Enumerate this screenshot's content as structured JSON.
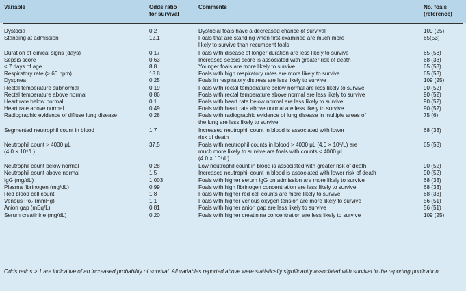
{
  "headers": {
    "variable": "Variable",
    "odds_line1": "Odds ratio",
    "odds_line2": "for survival",
    "comments": "Comments",
    "foals_line1": "No. foals",
    "foals_line2": "(reference)"
  },
  "rows": [
    {
      "variable": [
        "Dystocia"
      ],
      "odds": "0.2",
      "comments": [
        "Dystocial foals have a decreased chance of survival"
      ],
      "foals": "109 (25)"
    },
    {
      "variable": [
        "Standing at admission"
      ],
      "odds": "12.1",
      "comments": [
        "Foals that are standing when first examined are much more",
        "likely to survive than recumbent foals"
      ],
      "foals": "65(53)"
    },
    {
      "variable": [
        "Duration of clinical signs (days)"
      ],
      "odds": "0.17",
      "comments": [
        "Foals with disease of longer duration are less likely to survive"
      ],
      "foals": "65 (53)"
    },
    {
      "variable": [
        "Sepsis score"
      ],
      "odds": "0.63",
      "comments": [
        "Increased sepsis score is associated with greater risk of death"
      ],
      "foals": "68 (33)"
    },
    {
      "variable": [
        "≤ 7 days of age"
      ],
      "odds": "8.8",
      "comments": [
        "Younger foals are more likely to survive"
      ],
      "foals": "65 (53)"
    },
    {
      "variable": [
        "Respiratory rate (≥ 60 bpm)"
      ],
      "odds": "18.8",
      "comments": [
        "Foals with high respiratory rates are more likely to survive"
      ],
      "foals": "65 (53)"
    },
    {
      "variable": [
        "Dyspnea"
      ],
      "odds": "0.25",
      "comments": [
        "Foals in respiratory distress are less likely to survive"
      ],
      "foals": "109 (25)"
    },
    {
      "variable": [
        "Rectal temperature subnormal"
      ],
      "odds": "0.19",
      "comments": [
        "Foals with rectal temperature below normal are less likely to survive"
      ],
      "foals": "90 (52)"
    },
    {
      "variable": [
        "Rectal temperature above normal"
      ],
      "odds": "0.86",
      "comments": [
        "Foals with rectal temperature above normal are less likely to survive"
      ],
      "foals": "90 (52)"
    },
    {
      "variable": [
        "Heart rate below normal"
      ],
      "odds": "0.1",
      "comments": [
        "Foals with heart rate below normal are less likely to survive"
      ],
      "foals": "90 (52)"
    },
    {
      "variable": [
        "Heart rate above normal"
      ],
      "odds": "0.49",
      "comments": [
        "Foals with heart rate above normal are less likely to survive"
      ],
      "foals": "90 (52)"
    },
    {
      "variable": [
        "Radiographic evidence of diffuse lung disease"
      ],
      "odds": "0.28",
      "comments": [
        "Foals with radiographic evidence of lung disease in multiple areas of",
        "the lung are less likely to survive"
      ],
      "foals": "75 (6)"
    },
    {
      "variable": [
        "Segmented neutrophil count in blood"
      ],
      "odds": "1.7",
      "comments": [
        "Increased neutrophil count in blood is associated with lower",
        "risk of death"
      ],
      "foals": "68 (33)"
    },
    {
      "variable": [
        "Neutrophil count > 4000 μL",
        "(4.0 × 10⁹/L)"
      ],
      "odds": "37.5",
      "comments": [
        "Foals with neutrophil counts in lolood > 4000 μL (4.0 × 10⁹/L) are",
        "much more likely to survive are foals with counts < 4000 μL",
        "(4.0 × 10⁹/L)"
      ],
      "foals": "65 (53)"
    },
    {
      "variable": [
        "Neutrophil count below normal"
      ],
      "odds": "0.28",
      "comments": [
        "Low neutrophil count in blood is associated with greater risk of death"
      ],
      "foals": "90 (52)"
    },
    {
      "variable": [
        "Neutrophil count above normal"
      ],
      "odds": "1.5",
      "comments": [
        "Increased neutrophil count in blood is associated with lower risk of death"
      ],
      "foals": "90 (52)"
    },
    {
      "variable": [
        "IgG (mg/dL)"
      ],
      "odds": "1.003",
      "comments": [
        "Foals with higher serum IgG on admission are more likely to survive"
      ],
      "foals": "68 (33)"
    },
    {
      "variable": [
        "Plasma fibrinogen (mg/dL)"
      ],
      "odds": "0.99",
      "comments": [
        "Foals with high fibrinogen concentration are less likely to survive"
      ],
      "foals": "68 (33)"
    },
    {
      "variable": [
        "Red blood cell count"
      ],
      "odds": "1.8",
      "comments": [
        "Foals with higher red cell counts are more likely to survive"
      ],
      "foals": "68 (33)"
    },
    {
      "variable": [
        "Venous Po₂ (mmHg)"
      ],
      "odds": "1.1",
      "comments": [
        "Foals with higher venous oxygen tension are more likely to survive"
      ],
      "foals": "56 (51)"
    },
    {
      "variable": [
        "Anion gap (mEq/L)"
      ],
      "odds": "0.81",
      "comments": [
        "Foals with higher anion gap are less likely to survive"
      ],
      "foals": "56 (51)"
    },
    {
      "variable": [
        "Serum creatinine (mg/dL)"
      ],
      "odds": "0.20",
      "comments": [
        "Foals with higher creatinine concentration are less likely to survive"
      ],
      "foals": "109 (25)"
    }
  ],
  "footnote": "Odds ratios > 1 are indicative of an increased probability of survival. All variables reported above were statistically significantly associated with survival in the reporting publication."
}
